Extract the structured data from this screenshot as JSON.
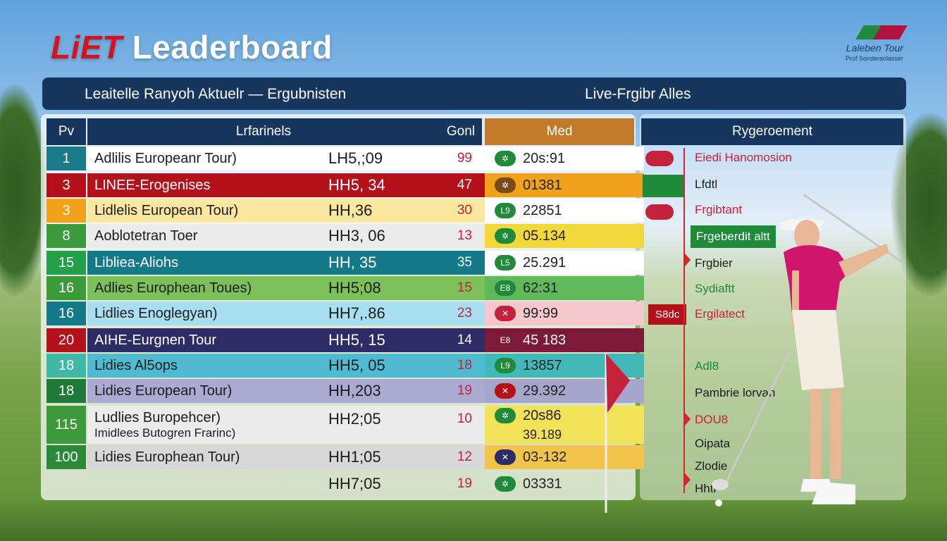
{
  "title": {
    "logo": "LiET",
    "text": "Leaderboard"
  },
  "brand": {
    "name": "Laleben Tour",
    "sub": "Prof Sonderanlasser",
    "colors": [
      "#1f8a3a",
      "#b2123f"
    ]
  },
  "banner": {
    "left": "Leaitelle Ranyoh Aktuelr — Ergubnisten",
    "right": "Live-Frgibr Alles"
  },
  "table": {
    "headers": {
      "pos": "Pv",
      "name": "Lrfarinels",
      "gross": "Gonl",
      "med": "Med",
      "right": "Rygeroement"
    },
    "rows": [
      {
        "rank": "1",
        "name": "Adlilis Europeanr Tour)",
        "code": "LH5,;09",
        "gross": "99",
        "chip": "✲",
        "med": "20s:91",
        "rank_color": "#1a7a88",
        "row_color": "#ffffff",
        "med_color": "#ffffff",
        "chip_color": "#1f8a3a"
      },
      {
        "rank": "3",
        "name": "LINEE-Erogenises",
        "code": "HH5, 34",
        "gross": "47",
        "chip": "✲",
        "med": "01381",
        "rank_color": "#b3121b",
        "row_color": "#b3121b",
        "med_color": "#f2a11b",
        "chip_color": "#7b4a1a"
      },
      {
        "rank": "3",
        "name": "Lidlelis European Tour)",
        "code": "HH,36",
        "gross": "30",
        "chip": "L9",
        "med": "22851",
        "rank_color": "#f2a11b",
        "row_color": "#fbe7a0",
        "med_color": "#ffffff",
        "chip_color": "#1f8a3a"
      },
      {
        "rank": "8",
        "name": "Aoblotetran Toer",
        "code": "HH3, 06",
        "gross": "13",
        "chip": "✲",
        "med": "05.134",
        "rank_color": "#3c9a3a",
        "row_color": "#ececec",
        "med_color": "#f2d83a",
        "chip_color": "#1f8a3a"
      },
      {
        "rank": "15",
        "name": "Libliea-Aliohs",
        "code": "HH, 35",
        "gross": "35",
        "chip": "L5",
        "med": "25.291",
        "rank_color": "#22a04a",
        "row_color": "#147a8a",
        "med_color": "#ffffff",
        "chip_color": "#1f8a3a"
      },
      {
        "rank": "16",
        "name": "Adlies Europhean Toues)",
        "code": "HH5;08",
        "gross": "15",
        "chip": "E8",
        "med": "62:31",
        "rank_color": "#3c9a3a",
        "row_color": "#7cc05a",
        "med_color": "#5fb85a",
        "chip_color": "#1f8a3a"
      },
      {
        "rank": "16",
        "name": "Lidlies Enoglegyan)",
        "code": "HH7,.86",
        "gross": "23",
        "chip": "✕",
        "med": "99:99",
        "rank_color": "#147a8a",
        "row_color": "#a8dff0",
        "med_color": "#f6c7cc",
        "chip_color": "#c4223a"
      },
      {
        "rank": "20",
        "name": "AIHE-Eurgnen Tour",
        "code": "HH5, 15",
        "gross": "14",
        "chip": "E8",
        "med": "45 183",
        "rank_color": "#b3121b",
        "row_color": "#2e2c66",
        "med_color": "#7d1a3a",
        "chip_color": "#7d1a3a"
      },
      {
        "rank": "18",
        "name": "Lidies Al5ops",
        "code": "HH5, 05",
        "gross": "18",
        "chip": "L9",
        "med": "13857",
        "rank_color": "#3fb8a8",
        "row_color": "#4fbad0",
        "med_color": "#43b8b8",
        "chip_color": "#1f8a3a"
      },
      {
        "rank": "18",
        "name": "Lidies European Tour)",
        "code": "HH,203",
        "gross": "19",
        "chip": "✕",
        "med": "29.392",
        "rank_color": "#1f7a3a",
        "row_color": "#aaaad2",
        "med_color": "#a6a6cc",
        "chip_color": "#b3121b"
      },
      {
        "rank": "115",
        "name": "Ludlies Buropehcer)",
        "name2": "Imidlees Butogren Frarinc)",
        "code": "HH2;05",
        "gross": "10",
        "chip": "✲",
        "med": "20s86",
        "med2": "39.189",
        "rank_color": "#3c9a3a",
        "row_color": "#ececec",
        "med_color": "#f2e25a",
        "chip_color": "#1f8a3a"
      },
      {
        "rank": "100",
        "name": "Lidies Europhean Tour)",
        "code": "HH1;05",
        "gross": "12",
        "chip": "✕",
        "med": "03-132",
        "rank_color": "#2a8a3a",
        "row_color": "#d8d8d8",
        "med_color": "#f2c44a",
        "chip_color": "#2e2c66"
      },
      {
        "rank": "",
        "name": "",
        "code": "HH7;05",
        "gross": "19",
        "chip": "✲",
        "med": "03331",
        "rank_color": "",
        "row_color": "",
        "med_color": "",
        "chip_color": "#1f8a3a"
      }
    ],
    "right_items": [
      {
        "label": "Eiedi Hanomosion",
        "color": "#c4223a"
      },
      {
        "label": "Lfdtl",
        "color": "#1c1c1c"
      },
      {
        "label": "Frgibtant",
        "color": "#c4223a"
      },
      {
        "label": "Frgeberdit altt",
        "color": "#ffffff"
      },
      {
        "label": "Frgbier",
        "color": "#1c1c1c"
      },
      {
        "label": "Sydiaftt",
        "color": "#1f8a3a"
      },
      {
        "label": "Ergilatect",
        "color": "#c4223a"
      },
      {
        "label": "S8dc",
        "color": "#ffffff"
      },
      {
        "label": "Adl8",
        "color": "#1f8a3a"
      },
      {
        "label": "Pambrie lorvan",
        "color": "#1c1c1c"
      },
      {
        "label": "DOU8",
        "color": "#c4223a"
      },
      {
        "label": "Oipata",
        "color": "#1c1c1c"
      },
      {
        "label": "Zlodie",
        "color": "#1c1c1c"
      },
      {
        "label": "Hhtl",
        "color": "#1c1c1c"
      }
    ]
  },
  "icons": [
    "flag-icon",
    "golfer-figure"
  ]
}
